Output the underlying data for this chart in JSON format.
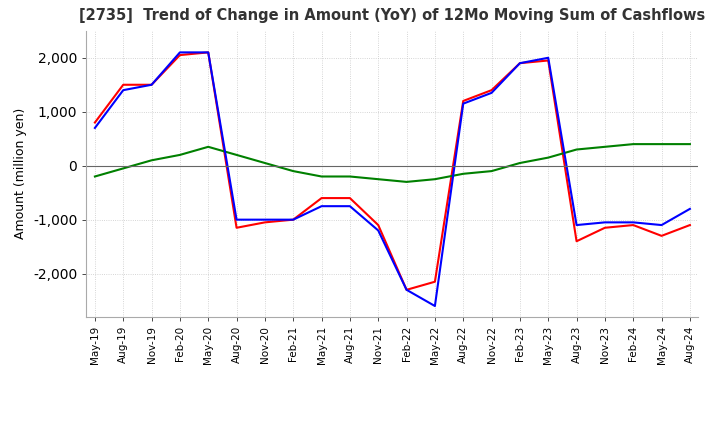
{
  "title": "[2735]  Trend of Change in Amount (YoY) of 12Mo Moving Sum of Cashflows",
  "ylabel": "Amount (million yen)",
  "x_labels": [
    "May-19",
    "Aug-19",
    "Nov-19",
    "Feb-20",
    "May-20",
    "Aug-20",
    "Nov-20",
    "Feb-21",
    "May-21",
    "Aug-21",
    "Nov-21",
    "Feb-22",
    "May-22",
    "Aug-22",
    "Nov-22",
    "Feb-23",
    "May-23",
    "Aug-23",
    "Nov-23",
    "Feb-24",
    "May-24",
    "Aug-24"
  ],
  "operating": [
    800,
    1500,
    1500,
    2050,
    2100,
    -1150,
    -1050,
    -1000,
    -600,
    -600,
    -1100,
    -2300,
    -2150,
    1200,
    1400,
    1900,
    1950,
    -1400,
    -1150,
    -1100,
    -1300,
    -1100
  ],
  "investing": [
    -200,
    -50,
    100,
    200,
    350,
    200,
    50,
    -100,
    -200,
    -200,
    -250,
    -300,
    -250,
    -150,
    -100,
    50,
    150,
    300,
    350,
    400,
    400,
    400
  ],
  "free": [
    700,
    1400,
    1500,
    2100,
    2100,
    -1000,
    -1000,
    -1000,
    -750,
    -750,
    -1200,
    -2300,
    -2600,
    1150,
    1350,
    1900,
    2000,
    -1100,
    -1050,
    -1050,
    -1100,
    -800
  ],
  "operating_color": "#FF0000",
  "investing_color": "#008000",
  "free_color": "#0000FF",
  "ylim": [
    -2800,
    2500
  ],
  "yticks": [
    -2000,
    -1000,
    0,
    1000,
    2000
  ],
  "background_color": "#FFFFFF",
  "grid_color": "#C8C8C8"
}
